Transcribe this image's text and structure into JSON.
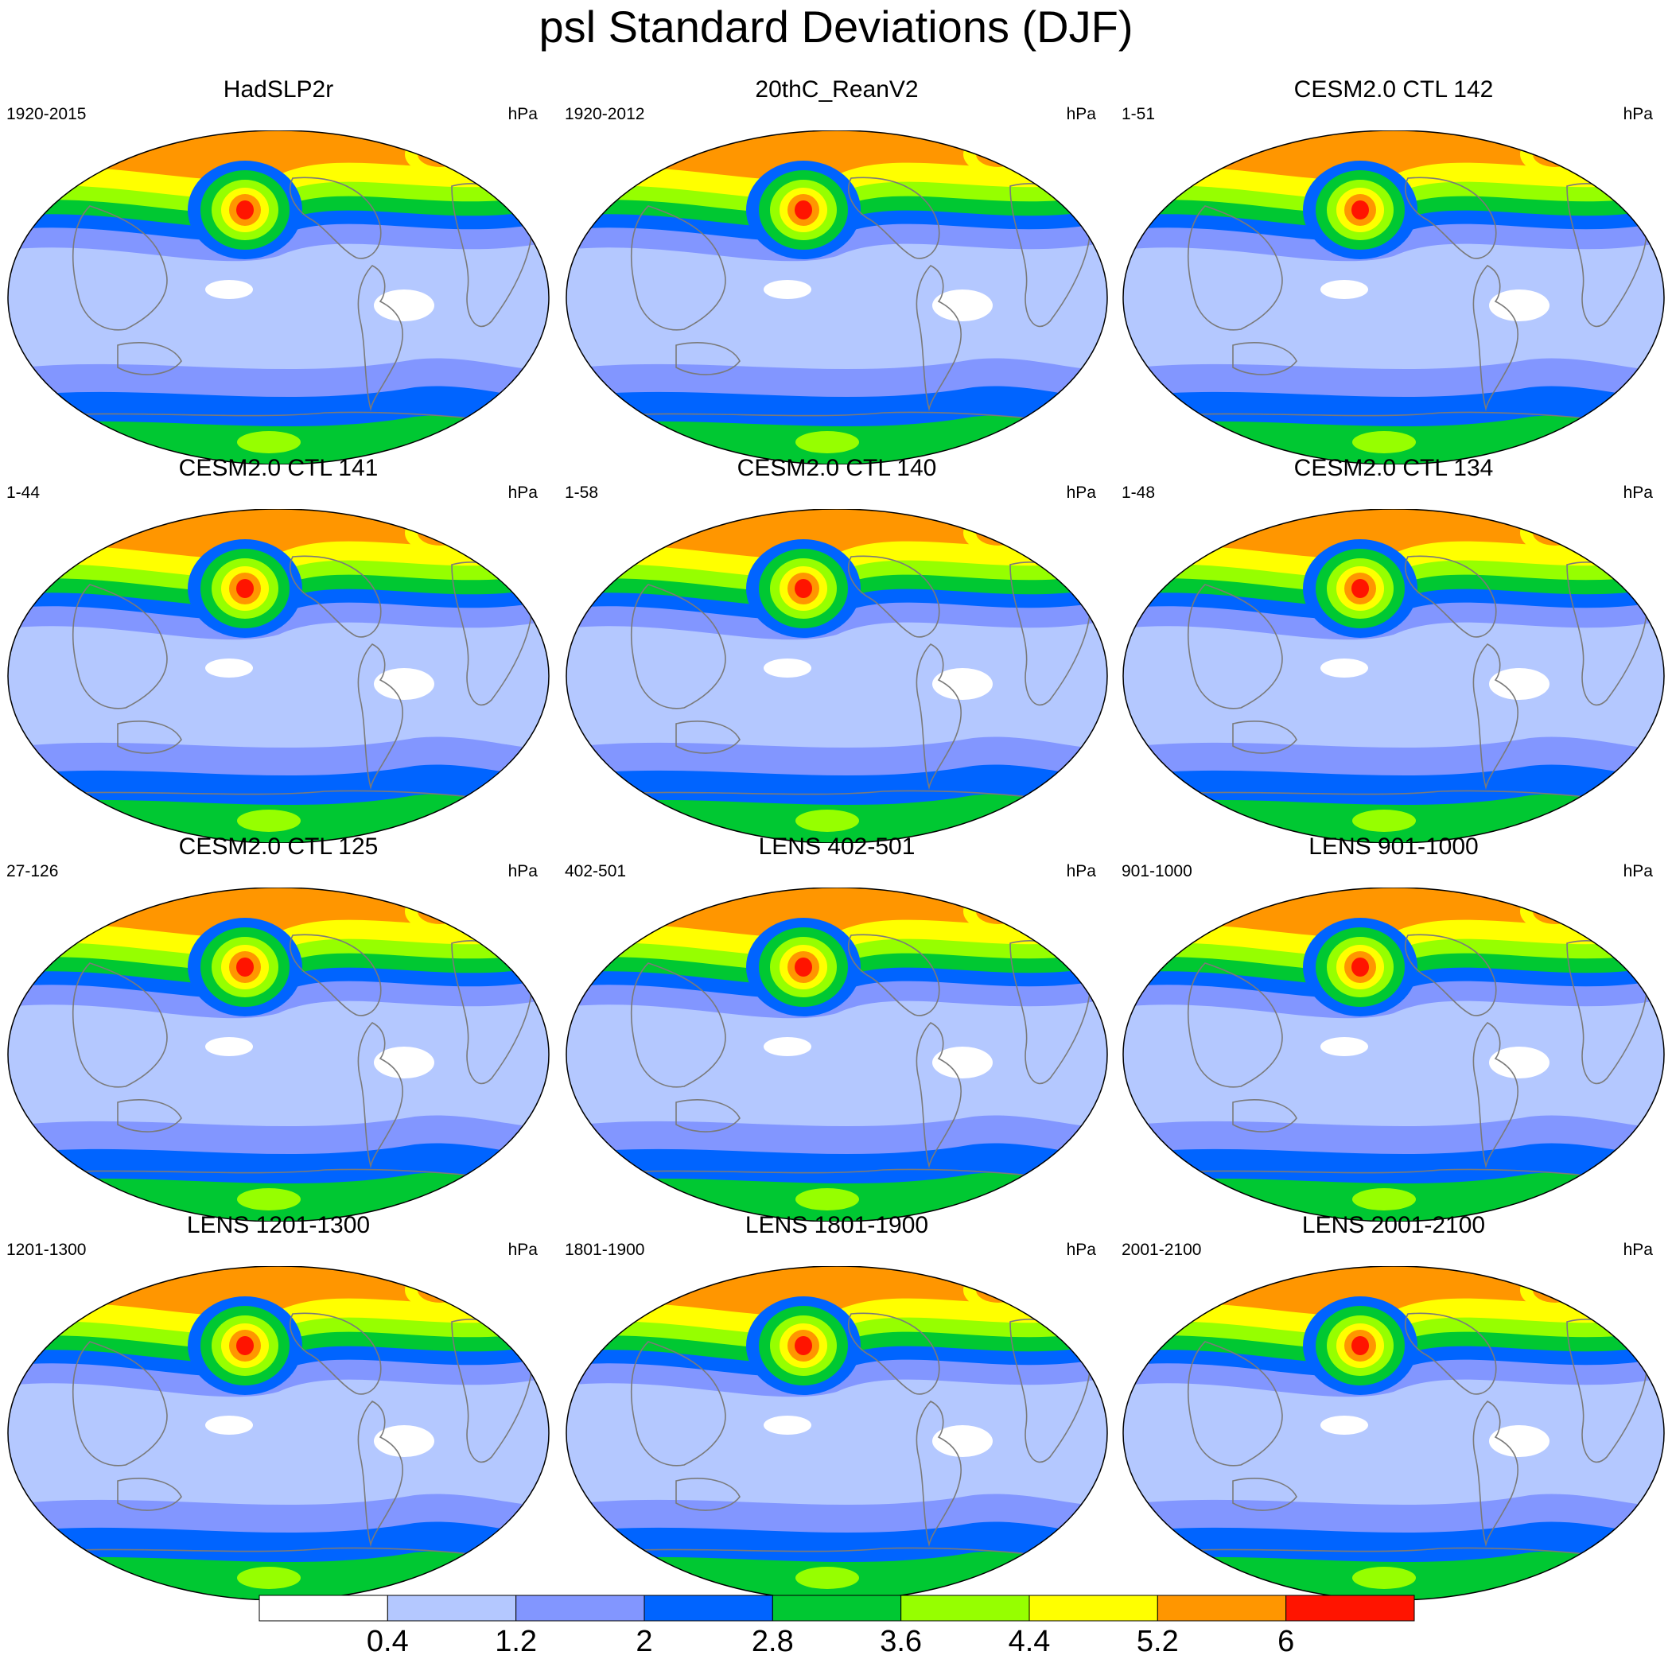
{
  "title": "psl Standard Deviations (DJF)",
  "unit": "hPa",
  "panels": [
    {
      "title": "HadSLP2r",
      "period": "1920-2015"
    },
    {
      "title": "20thC_ReanV2",
      "period": "1920-2012"
    },
    {
      "title": "CESM2.0 CTL 142",
      "period": "1-51"
    },
    {
      "title": "CESM2.0 CTL 141",
      "period": "1-44"
    },
    {
      "title": "CESM2.0 CTL 140",
      "period": "1-58"
    },
    {
      "title": "CESM2.0 CTL 134",
      "period": "1-48"
    },
    {
      "title": "CESM2.0 CTL 125",
      "period": "27-126"
    },
    {
      "title": "LENS 402-501",
      "period": "402-501"
    },
    {
      "title": "LENS 901-1000",
      "period": "901-1000"
    },
    {
      "title": "LENS 1201-1300",
      "period": "1201-1300"
    },
    {
      "title": "LENS 1801-1900",
      "period": "1801-1900"
    },
    {
      "title": "LENS 2001-2100",
      "period": "2001-2100"
    }
  ],
  "colorbar": {
    "colors": [
      "#ffffff",
      "#b4c8ff",
      "#8296ff",
      "#0064ff",
      "#00c832",
      "#96ff00",
      "#ffff00",
      "#ff9600",
      "#ff1400"
    ],
    "labels": [
      "0.4",
      "1.2",
      "2",
      "2.8",
      "3.6",
      "4.4",
      "5.2",
      "6"
    ]
  }
}
